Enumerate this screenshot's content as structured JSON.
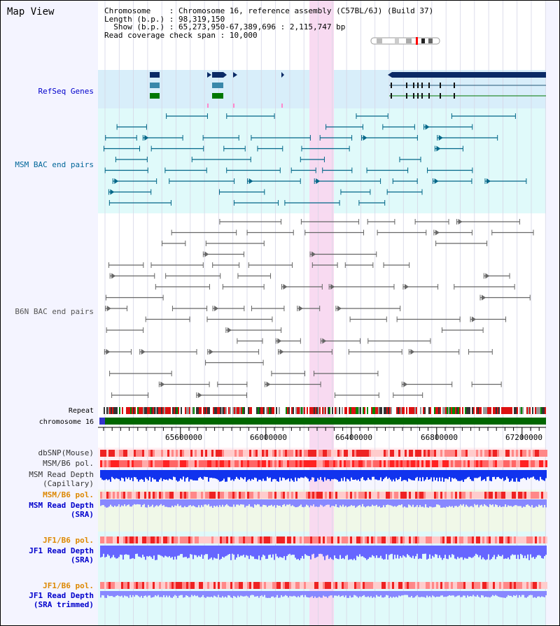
{
  "title": "Map View",
  "info": {
    "chromosome_label": "Chromosome",
    "chromosome_value": "Chromosome 16, reference assembly (C57BL/6J) (Build 37)",
    "length_label": "Length (b.p.)",
    "length_value": "98,319,150",
    "show_label": "Show (b.p.)",
    "show_value": "65,273,950-67,389,696 : 2,115,747 bp",
    "coverage_label": "Read coverage check span",
    "coverage_value": "10,000"
  },
  "tracks": {
    "refseq": "RefSeq Genes",
    "msm_bac": "MSM BAC end pairs",
    "b6n_bac": "B6N BAC end pairs",
    "repeat": "Repeat",
    "chromosome": "chromosome 16",
    "dbsnp": "dbSNP(Mouse)",
    "msm_b6_pol_1": "MSM/B6 pol.",
    "msm_read_cap_1": "MSM Read Depth",
    "msm_read_cap_2": "(Capillary)",
    "msm_b6_pol_2": "MSM/B6 pol.",
    "msm_read_sra_1": "MSM Read Depth",
    "msm_read_sra_2": "(SRA)",
    "jf1_b6_pol_1": "JF1/B6 pol.",
    "jf1_read_sra_1": "JF1 Read Depth",
    "jf1_read_sra_2": "(SRA)",
    "jf1_b6_pol_2": "JF1/B6 pol.",
    "jf1_read_trim_1": "JF1 Read Depth",
    "jf1_read_trim_2": "(SRA trimmed)"
  },
  "axis": {
    "ticks": [
      "65600000",
      "66000000",
      "66400000",
      "66800000",
      "67200000"
    ]
  },
  "colors": {
    "label_blue": "#0000cc",
    "label_teal": "#006699",
    "label_orange": "#dd8800",
    "highlight": "#f8d8f0"
  }
}
